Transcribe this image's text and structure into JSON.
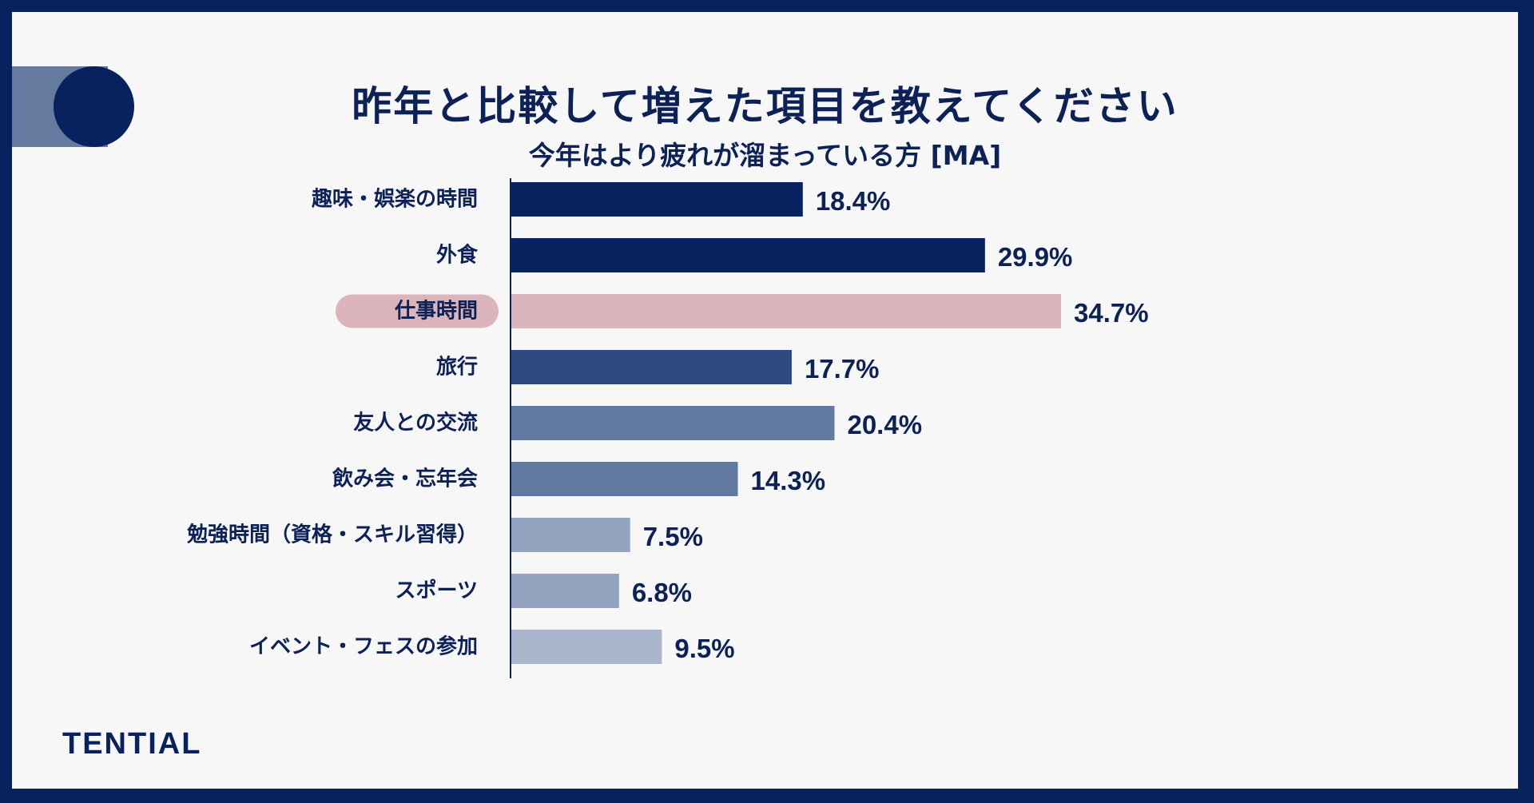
{
  "header": {
    "title": "昨年と比較して増えた項目を教えてください",
    "subtitle": "今年はより疲れが溜まっている方 [MA]"
  },
  "brand": {
    "logo_text": "TENTIAL"
  },
  "colors": {
    "frame": "#08215f",
    "background": "#f7f7f8",
    "highlight_pill": "#dcb4bb"
  },
  "chart_data": {
    "type": "bar",
    "orientation": "horizontal",
    "title": "昨年と比較して増えた項目を教えてください",
    "subtitle": "今年はより疲れが溜まっている方 [MA]",
    "categories": [
      "趣味・娯楽の時間",
      "外食",
      "仕事時間",
      "旅行",
      "友人との交流",
      "飲み会・忘年会",
      "勉強時間（資格・スキル習得）",
      "スポーツ",
      "イベント・フェスの参加"
    ],
    "values": [
      18.4,
      29.9,
      34.7,
      17.7,
      20.4,
      14.3,
      7.5,
      6.8,
      9.5
    ],
    "value_labels": [
      "18.4%",
      "29.9%",
      "34.7%",
      "17.7%",
      "20.4%",
      "14.3%",
      "7.5%",
      "6.8%",
      "9.5%"
    ],
    "bar_colors": [
      "#08215f",
      "#08215f",
      "#dcb4bb",
      "#2d4a80",
      "#637aa0",
      "#637aa0",
      "#94a3bf",
      "#94a3bf",
      "#abb6cc"
    ],
    "highlighted_category": "仕事時間",
    "unit": "%",
    "xlim": [
      0,
      34.7
    ],
    "grid": false,
    "legend": "none"
  }
}
